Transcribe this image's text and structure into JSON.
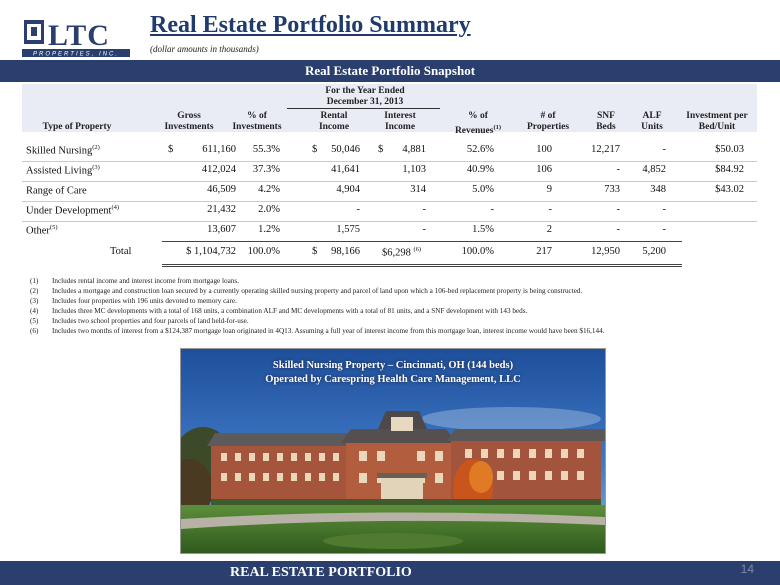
{
  "header": {
    "logo_text": "LTC",
    "logo_subtext": "PROPERTIES, INC.",
    "title": "Real Estate Portfolio Summary",
    "subtitle": "(dollar amounts in thousands)"
  },
  "banner": "Real Estate Portfolio Snapshot",
  "table": {
    "group_header_line1": "For the Year Ended",
    "group_header_line2": "December 31, 2013",
    "columns": {
      "type": "Type of Property",
      "gross1": "Gross",
      "gross2": "Investments",
      "pct1": "% of",
      "pct2": "Investments",
      "rental1": "Rental",
      "rental2": "Income",
      "interest1": "Interest",
      "interest2": "Income",
      "rev1": "% of",
      "rev2": "Revenues",
      "rev_sup": "(1)",
      "props1": "# of",
      "props2": "Properties",
      "snf1": "SNF",
      "snf2": "Beds",
      "alf1": "ALF",
      "alf2": "Units",
      "inv1": "Investment per",
      "inv2": "Bed/Unit"
    },
    "rows": [
      {
        "type": "Skilled Nursing",
        "sup": "(2)",
        "gross_cur": "$",
        "gross": "611,160",
        "pct": "55.3%",
        "rental_cur": "$",
        "rental": "50,046",
        "interest_cur": "$",
        "interest": "4,881",
        "rev": "52.6%",
        "props": "100",
        "snf": "12,217",
        "alf": "-",
        "inv": "$50.03"
      },
      {
        "type": "Assisted Living",
        "sup": "(3)",
        "gross_cur": "",
        "gross": "412,024",
        "pct": "37.3%",
        "rental_cur": "",
        "rental": "41,641",
        "interest_cur": "",
        "interest": "1,103",
        "rev": "40.9%",
        "props": "106",
        "snf": "-",
        "alf": "4,852",
        "inv": "$84.92"
      },
      {
        "type": "Range of Care",
        "sup": "",
        "gross_cur": "",
        "gross": "46,509",
        "pct": "4.2%",
        "rental_cur": "",
        "rental": "4,904",
        "interest_cur": "",
        "interest": "314",
        "rev": "5.0%",
        "props": "9",
        "snf": "733",
        "alf": "348",
        "inv": "$43.02"
      },
      {
        "type": "Under Development",
        "sup": "(4)",
        "gross_cur": "",
        "gross": "21,432",
        "pct": "2.0%",
        "rental_cur": "",
        "rental": "-",
        "interest_cur": "",
        "interest": "-",
        "rev": "-",
        "props": "-",
        "snf": "-",
        "alf": "-",
        "inv": ""
      },
      {
        "type": "Other",
        "sup": "(5)",
        "gross_cur": "",
        "gross": "13,607",
        "pct": "1.2%",
        "rental_cur": "",
        "rental": "1,575",
        "interest_cur": "",
        "interest": "-",
        "rev": "1.5%",
        "props": "2",
        "snf": "-",
        "alf": "-",
        "inv": ""
      }
    ],
    "total": {
      "type": "Total",
      "gross": "$ 1,104,732",
      "pct": "100.0%",
      "rental_cur": "$",
      "rental": "98,166",
      "interest": "$6,298",
      "interest_sup": "(6)",
      "rev": "100.0%",
      "props": "217",
      "snf": "12,950",
      "alf": "5,200"
    }
  },
  "footnotes": [
    {
      "num": "(1)",
      "text": "Includes rental income and interest income from mortgage loans."
    },
    {
      "num": "(2)",
      "text": "Includes a mortgage and construction loan secured by a currently operating skilled nursing property and parcel of land upon which a 106-bed replacement property is being constructed."
    },
    {
      "num": "(3)",
      "text": "Includes four  properties with 196 units devoted to memory care."
    },
    {
      "num": "(4)",
      "text": "Includes three MC developments with a total of 168 units, a combination ALF and MC developments with a total of 81 units, and a SNF development with 143 beds."
    },
    {
      "num": "(5)",
      "text": "Includes two school properties and four parcels of land held-for-use."
    },
    {
      "num": "(6)",
      "text": "Includes two months of interest from a $124,387 mortgage loan originated in 4Q13.  Assuming a full year of interest income from this mortgage loan, interest income would have been $16,144."
    }
  ],
  "photo": {
    "caption_line1": "Skilled Nursing Property – Cincinnati, OH (144 beds)",
    "caption_line2": "Operated by Carespring Health Care Management, LLC"
  },
  "footer": {
    "label": "REAL ESTATE PORTFOLIO",
    "page": "14"
  },
  "colors": {
    "brand": "#2b3f6e",
    "title": "#1f3a6b"
  }
}
